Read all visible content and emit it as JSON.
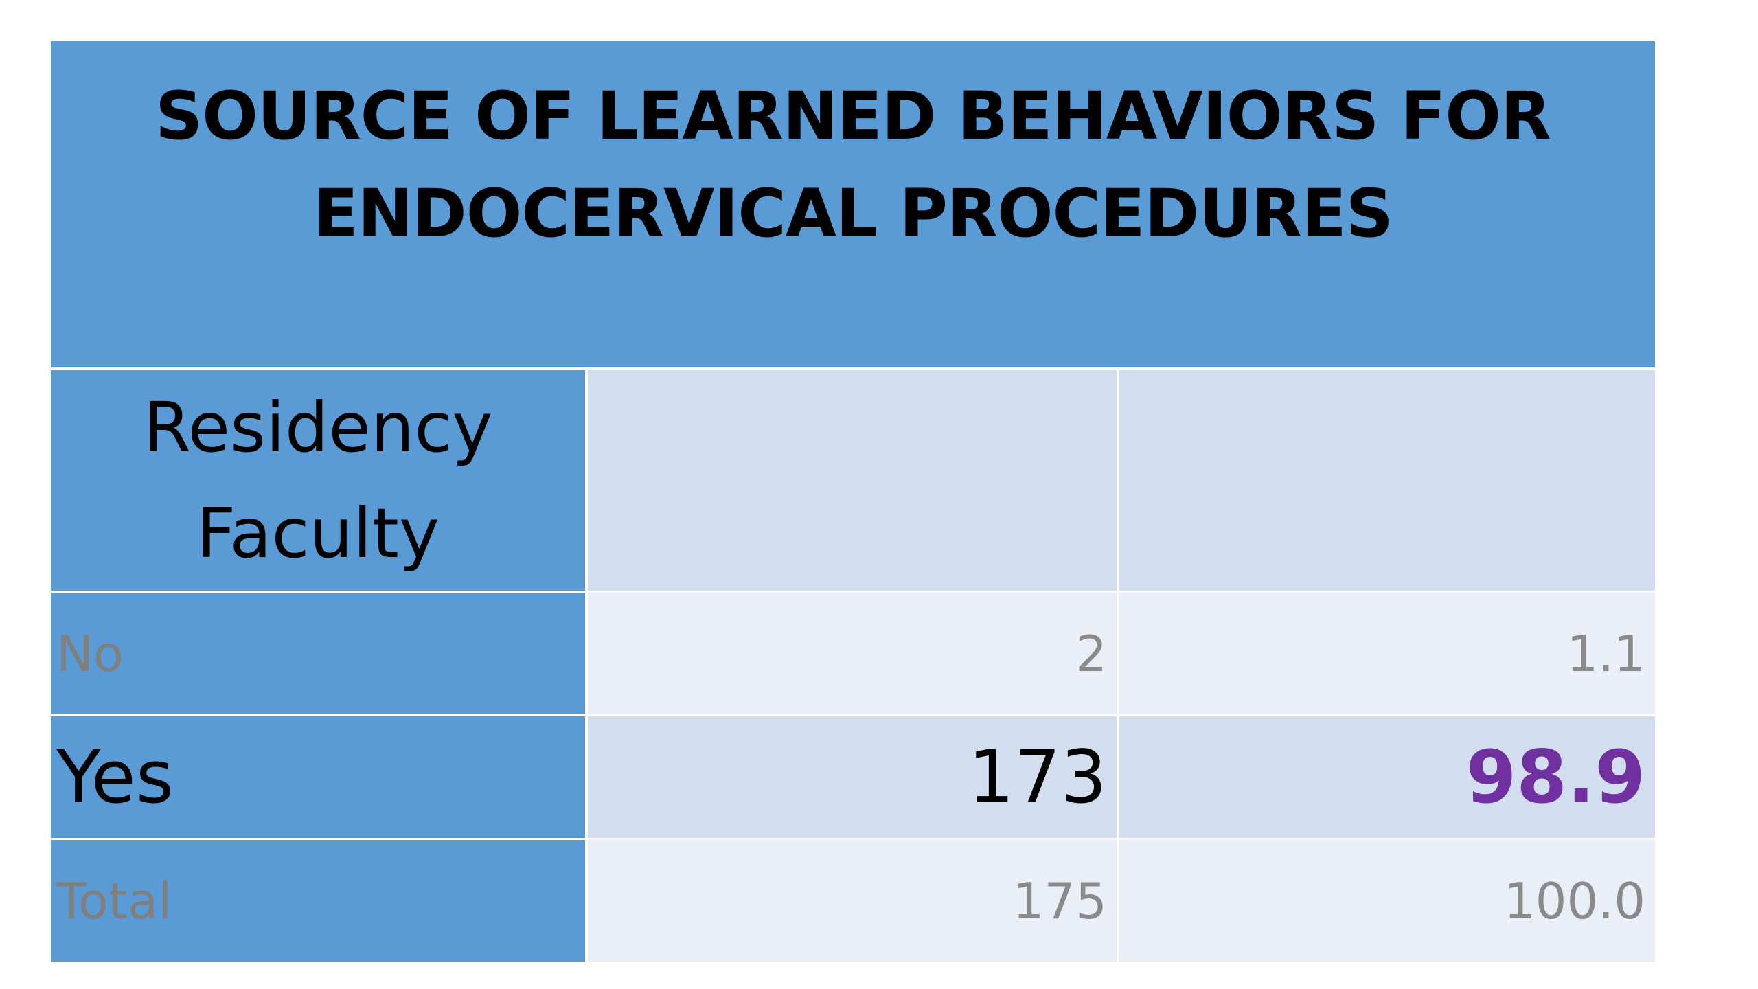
{
  "title": "SOURCE OF LEARNED BEHAVIORS FOR ENDOCERVICAL PROCEDURES",
  "header_label_line1": "Residency",
  "header_label_line2": "Faculty",
  "rows": [
    {
      "label": "No",
      "count": "2",
      "percent": "1.1"
    },
    {
      "label": "Yes",
      "count": "173",
      "percent": "98.9"
    },
    {
      "label": "Total",
      "count": "175",
      "percent": "100.0"
    }
  ],
  "colors": {
    "header_blue": "#5b9bd5",
    "band_dark": "#d2deef",
    "band_light": "#eaeff7",
    "muted_text": "#8a8a8a",
    "highlight_purple": "#7030a0"
  }
}
